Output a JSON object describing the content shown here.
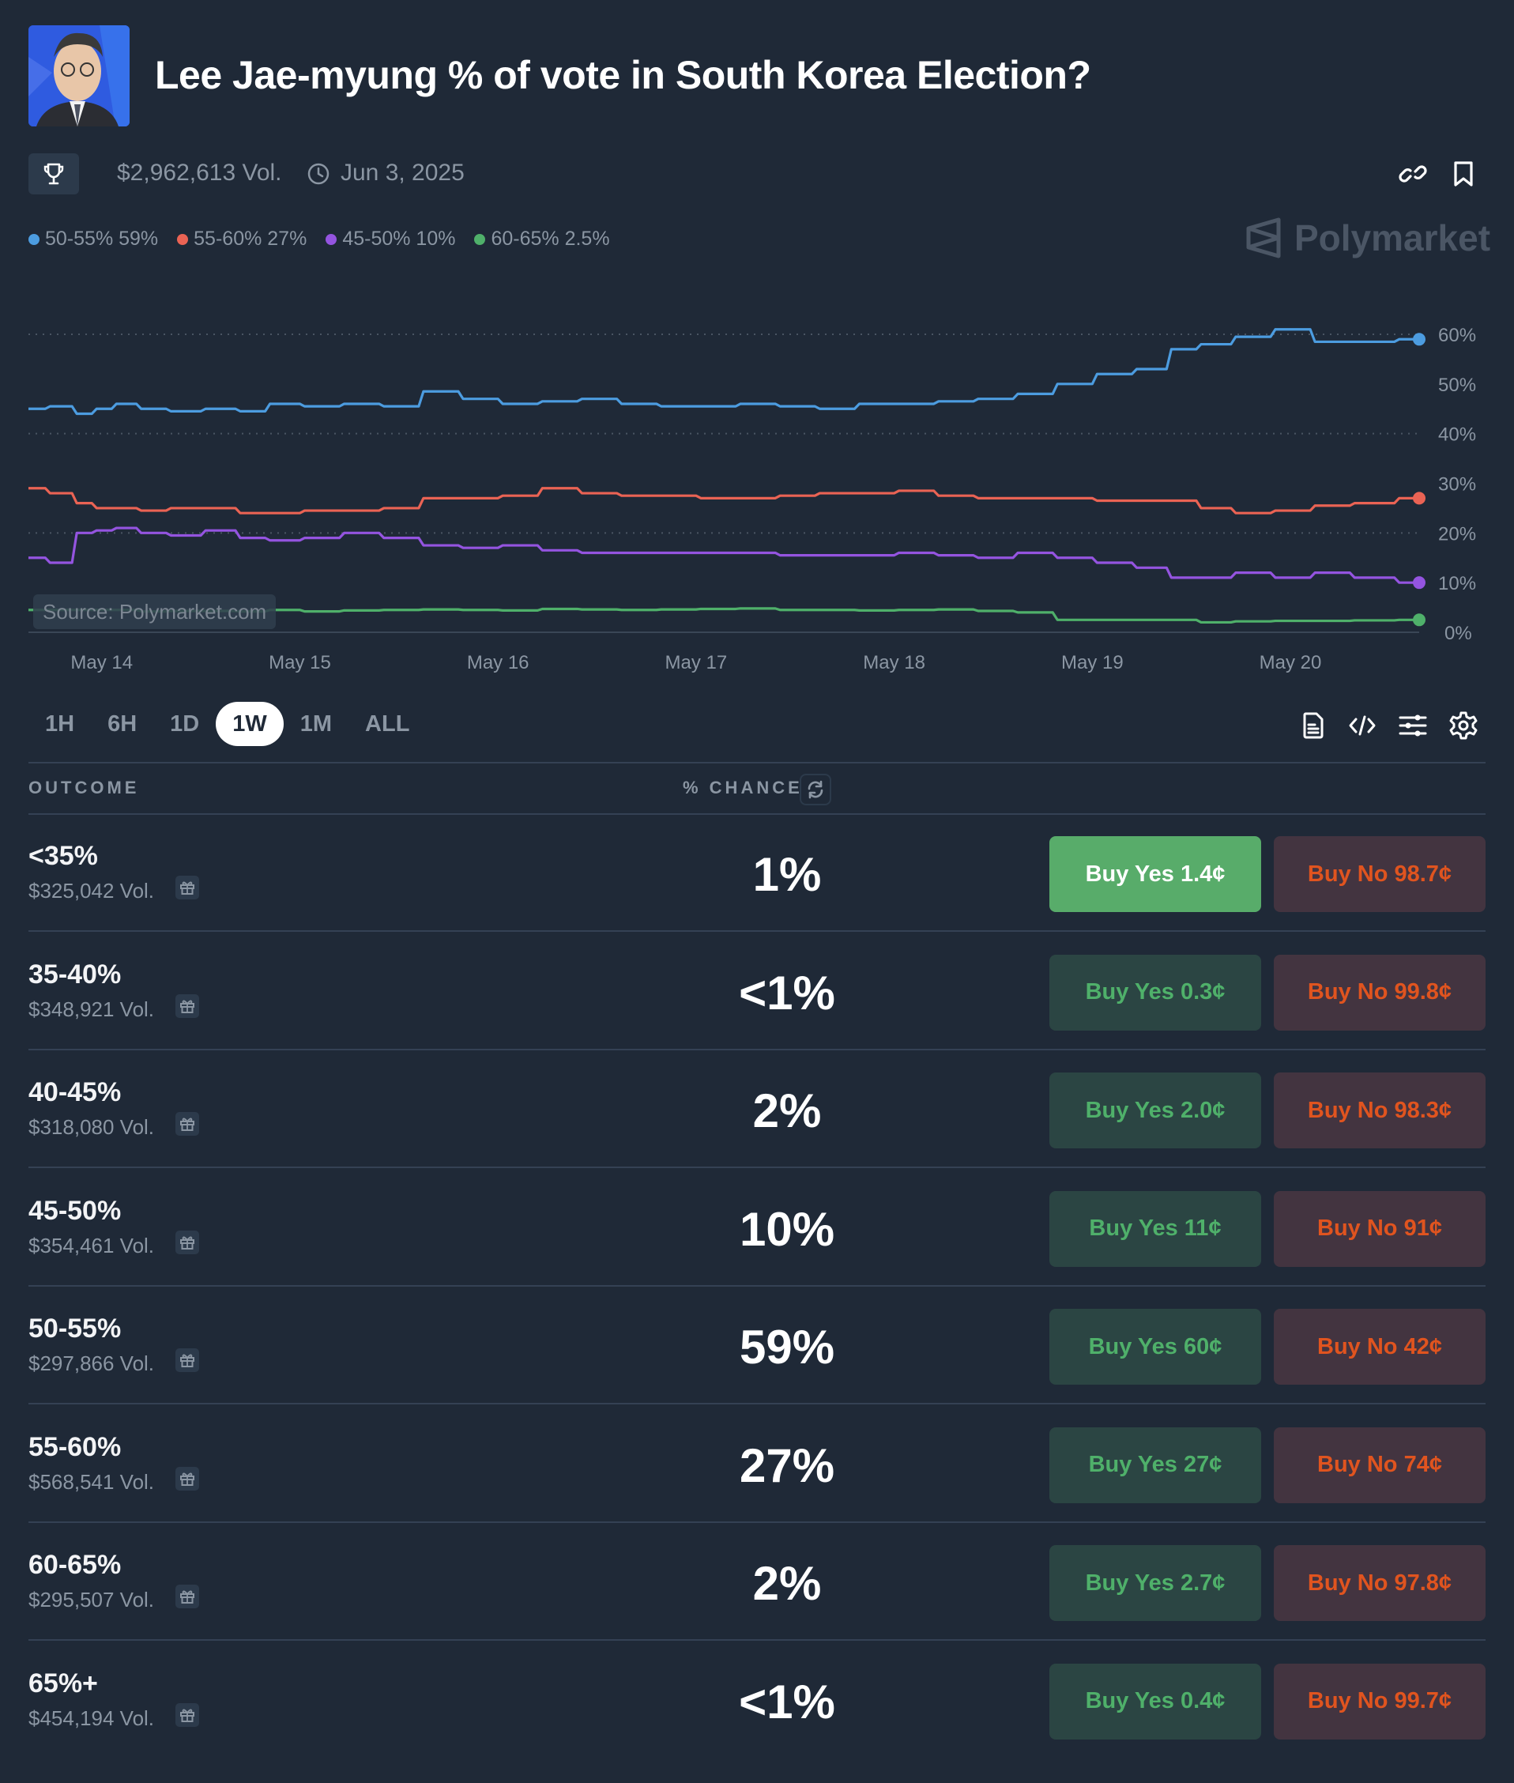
{
  "header": {
    "title": "Lee Jae-myung % of vote in South Korea Election?",
    "volume": "$2,962,613 Vol.",
    "end_date": "Jun 3, 2025",
    "icons": [
      "trophy-icon",
      "clock-icon",
      "link-icon",
      "bookmark-icon"
    ]
  },
  "brand": {
    "name": "Polymarket"
  },
  "source_note": "Source: Polymarket.com",
  "legend": [
    {
      "label": "50-55% 59%",
      "color": "#4c9ce0"
    },
    {
      "label": "55-60% 27%",
      "color": "#ea6354"
    },
    {
      "label": "45-50% 10%",
      "color": "#9454e0"
    },
    {
      "label": "60-65% 2.5%",
      "color": "#4fb06a"
    }
  ],
  "time_ranges": [
    {
      "label": "1H",
      "active": false
    },
    {
      "label": "6H",
      "active": false
    },
    {
      "label": "1D",
      "active": false
    },
    {
      "label": "1W",
      "active": true
    },
    {
      "label": "1M",
      "active": false
    },
    {
      "label": "ALL",
      "active": false
    }
  ],
  "chart_tools": [
    "document-icon",
    "code-icon",
    "sliders-icon",
    "gear-icon"
  ],
  "table": {
    "col_outcome": "OUTCOME",
    "col_chance": "% CHANCE",
    "rows": [
      {
        "label": "<35%",
        "volume": "$325,042 Vol.",
        "chance": "1%",
        "yes": "Buy Yes 1.4¢",
        "no": "Buy No 98.7¢",
        "yes_active": true
      },
      {
        "label": "35-40%",
        "volume": "$348,921 Vol.",
        "chance": "<1%",
        "yes": "Buy Yes 0.3¢",
        "no": "Buy No 99.8¢",
        "yes_active": false
      },
      {
        "label": "40-45%",
        "volume": "$318,080 Vol.",
        "chance": "2%",
        "yes": "Buy Yes 2.0¢",
        "no": "Buy No 98.3¢",
        "yes_active": false
      },
      {
        "label": "45-50%",
        "volume": "$354,461 Vol.",
        "chance": "10%",
        "yes": "Buy Yes 11¢",
        "no": "Buy No 91¢",
        "yes_active": false
      },
      {
        "label": "50-55%",
        "volume": "$297,866 Vol.",
        "chance": "59%",
        "yes": "Buy Yes 60¢",
        "no": "Buy No 42¢",
        "yes_active": false
      },
      {
        "label": "55-60%",
        "volume": "$568,541 Vol.",
        "chance": "27%",
        "yes": "Buy Yes 27¢",
        "no": "Buy No 74¢",
        "yes_active": false
      },
      {
        "label": "60-65%",
        "volume": "$295,507 Vol.",
        "chance": "2%",
        "yes": "Buy Yes 2.7¢",
        "no": "Buy No 97.8¢",
        "yes_active": false
      },
      {
        "label": "65%+",
        "volume": "$454,194 Vol.",
        "chance": "<1%",
        "yes": "Buy Yes 0.4¢",
        "no": "Buy No 99.7¢",
        "yes_active": false
      }
    ]
  },
  "chart_data": {
    "type": "line",
    "title": "",
    "xlabel": "",
    "ylabel": "",
    "x_range_days": [
      13.63,
      20.65
    ],
    "x_ticks": [
      {
        "label": "May 14",
        "day": 14
      },
      {
        "label": "May 15",
        "day": 15
      },
      {
        "label": "May 16",
        "day": 16
      },
      {
        "label": "May 17",
        "day": 17
      },
      {
        "label": "May 18",
        "day": 18
      },
      {
        "label": "May 19",
        "day": 19
      },
      {
        "label": "May 20",
        "day": 20
      }
    ],
    "y_ticks": [
      "0%",
      "10%",
      "20%",
      "30%",
      "40%",
      "50%",
      "60%"
    ],
    "ylim": [
      0,
      60
    ],
    "grid": "horizontal dotted at 20%, 40%, 60%",
    "legend_position": "top-left",
    "x": [
      13.63,
      13.8,
      13.9,
      14.0,
      14.1,
      14.25,
      14.4,
      14.6,
      14.75,
      14.9,
      15.1,
      15.3,
      15.5,
      15.7,
      15.9,
      16.1,
      16.3,
      16.5,
      16.7,
      16.9,
      17.1,
      17.3,
      17.5,
      17.7,
      17.9,
      18.1,
      18.3,
      18.5,
      18.7,
      18.9,
      19.1,
      19.3,
      19.45,
      19.6,
      19.8,
      20.0,
      20.2,
      20.4,
      20.65
    ],
    "series": [
      {
        "name": "50-55%",
        "color": "#4c9ce0",
        "values": [
          45,
          45.5,
          44,
          45,
          46,
          45,
          44.5,
          45,
          44.5,
          46,
          45.5,
          46,
          45.5,
          48.5,
          47,
          46,
          46.5,
          47,
          46,
          45.5,
          45.5,
          46,
          45.5,
          45,
          46,
          46,
          46.5,
          47,
          48,
          50,
          52,
          53,
          57,
          58,
          59.5,
          61,
          58.5,
          58.5,
          59
        ]
      },
      {
        "name": "55-60%",
        "color": "#ea6354",
        "values": [
          29,
          28,
          26,
          25,
          25,
          24.5,
          25,
          25,
          24,
          24,
          24.5,
          24.5,
          25,
          27,
          27,
          27.5,
          29,
          28,
          27.5,
          27.5,
          27,
          27,
          27.5,
          28,
          28,
          28.5,
          27.5,
          27,
          27,
          27,
          26.5,
          26.5,
          26.5,
          25,
          24,
          24.5,
          25.5,
          26,
          27
        ]
      },
      {
        "name": "45-50%",
        "color": "#9454e0",
        "values": [
          15,
          14,
          20,
          20.5,
          21,
          20,
          19.5,
          20.5,
          19,
          18.5,
          19,
          20,
          19,
          17.5,
          17,
          17.5,
          16.5,
          16,
          16,
          16,
          16,
          16,
          15.5,
          15.5,
          15.5,
          16,
          15.5,
          15,
          16,
          15,
          14,
          13,
          11,
          11,
          12,
          11,
          12,
          11,
          10
        ]
      },
      {
        "name": "60-65%",
        "color": "#4fb06a",
        "values": [
          4.5,
          4.5,
          4.5,
          4.5,
          4.5,
          4.2,
          4.3,
          4.3,
          4.2,
          4.5,
          4.2,
          4.4,
          4.5,
          4.6,
          4.5,
          4.4,
          4.7,
          4.6,
          4.5,
          4.6,
          4.7,
          4.8,
          4.5,
          4.5,
          4.4,
          4.5,
          4.6,
          4.3,
          4.0,
          2.5,
          2.5,
          2.5,
          2.5,
          2.0,
          2.2,
          2.3,
          2.3,
          2.4,
          2.5
        ]
      }
    ]
  }
}
